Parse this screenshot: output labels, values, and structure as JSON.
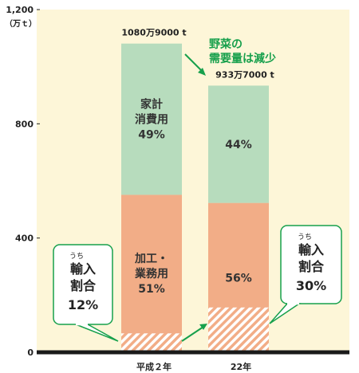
{
  "chart_data": {
    "type": "bar",
    "stacked": true,
    "unit_label": "（万ｔ）",
    "categories": [
      "平成２年",
      "22年"
    ],
    "ylim": [
      0,
      1200
    ],
    "yticks": [
      "0",
      "400",
      "800",
      "1,200"
    ],
    "totals": [
      {
        "value": 1080.9,
        "label": "1080万9000 t"
      },
      {
        "value": 933.7,
        "label": "933万7000 t"
      }
    ],
    "series": [
      {
        "name": "加工・業務用",
        "color": "#f2ad87",
        "values": [
          551.3,
          522.9
        ],
        "labels": [
          [
            "加工・",
            "業務用",
            "51%"
          ],
          [
            "56%"
          ]
        ]
      },
      {
        "name": "家計消費用",
        "color": "#b7dcbd",
        "values": [
          529.6,
          410.8
        ],
        "labels": [
          [
            "家計",
            "消費用",
            "49%"
          ],
          [
            "44%"
          ]
        ]
      }
    ],
    "import_share": {
      "values": [
        66.2,
        156.9
      ],
      "ruby": "うち",
      "lines": [
        "輸入",
        "割合"
      ],
      "labels": [
        "12%",
        "30%"
      ]
    },
    "annotation": [
      "野菜の",
      "需要量は減少"
    ],
    "colors": {
      "accent": "#17a04c",
      "background": "#fdf6d8",
      "hatch": "#f2ad87"
    }
  }
}
